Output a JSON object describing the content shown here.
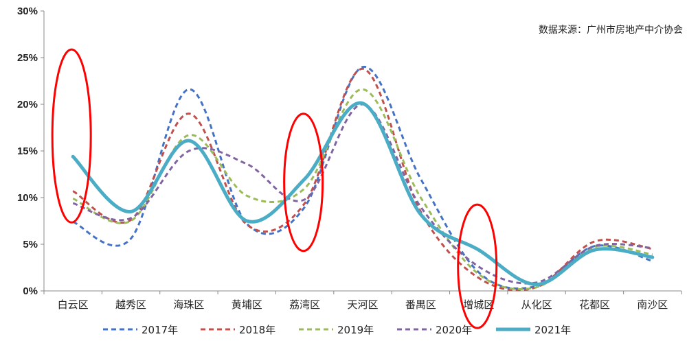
{
  "chart_data": {
    "type": "line",
    "source_note": "数据来源：广州市房地产中介协会",
    "categories": [
      "白云区",
      "越秀区",
      "海珠区",
      "黄埔区",
      "荔湾区",
      "天河区",
      "番禺区",
      "增城区",
      "从化区",
      "花都区",
      "南沙区"
    ],
    "y_ticks": [
      "0%",
      "5%",
      "10%",
      "15%",
      "20%",
      "25%",
      "30%"
    ],
    "ylim": [
      0,
      30
    ],
    "series": [
      {
        "name": "2017年",
        "color": "#4472C4",
        "dashed": true,
        "values": [
          7.4,
          5.6,
          21.6,
          7.2,
          9.0,
          24.0,
          12.0,
          2.0,
          0.5,
          4.8,
          3.2
        ]
      },
      {
        "name": "2018年",
        "color": "#C0504D",
        "dashed": true,
        "values": [
          10.7,
          7.6,
          19.0,
          7.1,
          9.4,
          23.8,
          8.5,
          1.4,
          0.4,
          5.3,
          4.5
        ]
      },
      {
        "name": "2019年",
        "color": "#9BBB59",
        "dashed": true,
        "values": [
          9.9,
          7.5,
          16.7,
          10.2,
          11.0,
          21.6,
          10.0,
          1.8,
          0.4,
          4.7,
          3.9
        ]
      },
      {
        "name": "2020年",
        "color": "#8064A2",
        "dashed": true,
        "values": [
          9.4,
          7.8,
          15.0,
          13.6,
          9.8,
          20.0,
          9.0,
          2.6,
          0.9,
          4.8,
          4.6
        ]
      },
      {
        "name": "2021年",
        "color": "#4BACC6",
        "dashed": false,
        "values": [
          14.4,
          8.5,
          16.1,
          7.5,
          12.0,
          20.1,
          8.2,
          4.4,
          0.7,
          4.4,
          3.6
        ]
      }
    ],
    "annotations": [
      {
        "type": "ellipse",
        "color": "#FF0000",
        "category": "白云区"
      },
      {
        "type": "ellipse",
        "color": "#FF0000",
        "category": "荔湾区"
      },
      {
        "type": "ellipse",
        "color": "#FF0000",
        "category": "增城区"
      }
    ],
    "grid": "horizontal-none",
    "legend_position": "bottom"
  }
}
